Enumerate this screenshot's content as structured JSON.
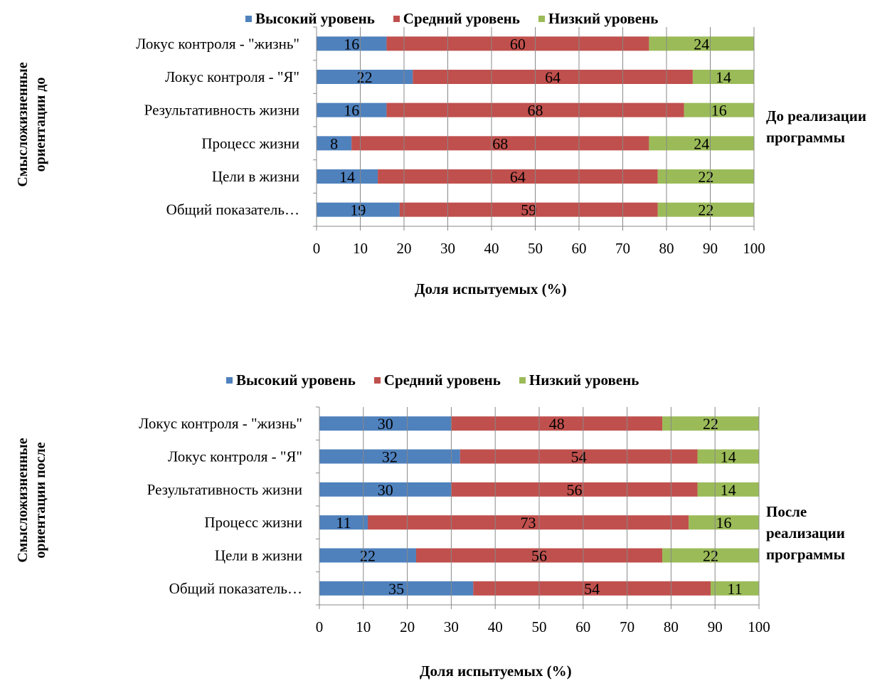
{
  "colors": {
    "high": "#4F81BD",
    "medium": "#C0504D",
    "low": "#9BBB59"
  },
  "chart_data": [
    {
      "type": "bar",
      "orientation": "horizontal",
      "stacked": true,
      "title": "",
      "legend_position": "top",
      "ylabel": "Смысложизненные ориентации до",
      "xlabel": "Доля испытуемых (%)",
      "side_note": "До реализации программы",
      "xlim": [
        0,
        100
      ],
      "xticks": [
        0,
        10,
        20,
        30,
        40,
        50,
        60,
        70,
        80,
        90,
        100
      ],
      "grid": false,
      "categories": [
        "Локус контроля - \"жизнь\"",
        "Локус контроля - \"Я\"",
        "Результативность жизни",
        "Процесс жизни",
        "Цели в жизни",
        "Общий показатель…"
      ],
      "series": [
        {
          "name": "Высокий уровень",
          "values": [
            16,
            22,
            16,
            8,
            14,
            19
          ]
        },
        {
          "name": "Средний уровень",
          "values": [
            60,
            64,
            68,
            68,
            64,
            59
          ]
        },
        {
          "name": "Низкий уровень",
          "values": [
            24,
            14,
            16,
            24,
            22,
            22
          ]
        }
      ]
    },
    {
      "type": "bar",
      "orientation": "horizontal",
      "stacked": true,
      "title": "",
      "legend_position": "top",
      "ylabel": "Смысложизненные ориентации после",
      "xlabel": "Доля испытуемых (%)",
      "side_note": "После реализации программы",
      "xlim": [
        0,
        100
      ],
      "xticks": [
        0,
        10,
        20,
        30,
        40,
        50,
        60,
        70,
        80,
        90,
        100
      ],
      "grid": false,
      "categories": [
        "Локус контроля - \"жизнь\"",
        "Локус контроля - \"Я\"",
        "Результативность жизни",
        "Процесс жизни",
        "Цели в жизни",
        "Общий показатель…"
      ],
      "series": [
        {
          "name": "Высокий уровень",
          "values": [
            30,
            32,
            30,
            11,
            22,
            35
          ]
        },
        {
          "name": "Средний уровень",
          "values": [
            48,
            54,
            56,
            73,
            56,
            54
          ]
        },
        {
          "name": "Низкий уровень",
          "values": [
            22,
            14,
            14,
            16,
            22,
            11
          ]
        }
      ]
    }
  ]
}
